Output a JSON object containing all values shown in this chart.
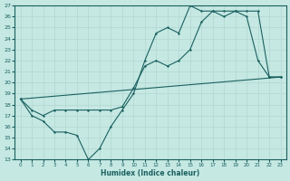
{
  "xlabel": "Humidex (Indice chaleur)",
  "xlim": [
    -0.5,
    23.5
  ],
  "ylim": [
    13,
    27
  ],
  "yticks": [
    13,
    14,
    15,
    16,
    17,
    18,
    19,
    20,
    21,
    22,
    23,
    24,
    25,
    26,
    27
  ],
  "xticks": [
    0,
    1,
    2,
    3,
    4,
    5,
    6,
    7,
    8,
    9,
    10,
    11,
    12,
    13,
    14,
    15,
    16,
    17,
    18,
    19,
    20,
    21,
    22,
    23
  ],
  "bg_color": "#c5e8e2",
  "line_color": "#1a6060",
  "grid_color": "#b0d8d0",
  "line1_x": [
    0,
    1,
    2,
    3,
    4,
    5,
    6,
    7,
    8,
    9,
    10,
    11,
    12,
    13,
    14,
    15,
    16,
    17,
    18,
    19,
    20,
    21,
    22,
    23
  ],
  "line1_y": [
    18.5,
    17.0,
    16.5,
    15.5,
    15.5,
    15.2,
    13.0,
    14.0,
    16.0,
    17.5,
    19.0,
    22.0,
    24.5,
    25.0,
    24.5,
    27.0,
    26.5,
    26.5,
    26.5,
    26.5,
    26.0,
    22.0,
    20.5,
    20.5
  ],
  "line2_x": [
    0,
    1,
    2,
    3,
    4,
    5,
    6,
    7,
    8,
    9,
    10,
    11,
    12,
    13,
    14,
    15,
    16,
    17,
    18,
    19,
    20,
    21,
    22,
    23
  ],
  "line2_y": [
    18.5,
    17.5,
    17.0,
    17.5,
    17.5,
    17.5,
    17.5,
    17.5,
    17.5,
    17.8,
    19.5,
    21.5,
    22.0,
    21.5,
    22.0,
    23.0,
    25.5,
    26.5,
    26.0,
    26.5,
    26.5,
    26.5,
    20.5,
    20.5
  ],
  "line3_x": [
    0,
    23
  ],
  "line3_y": [
    18.5,
    20.5
  ]
}
